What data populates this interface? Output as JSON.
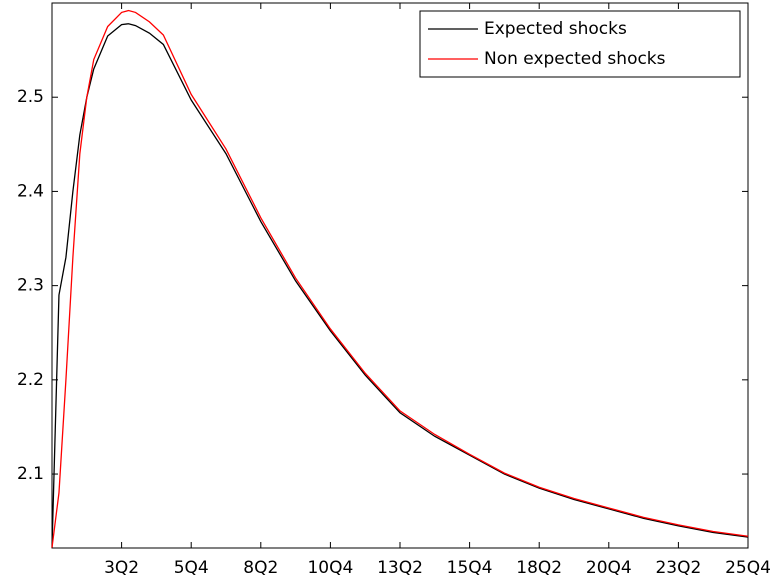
{
  "chart_data": {
    "type": "line",
    "x": [
      0,
      1,
      2,
      3,
      4,
      5,
      6,
      8,
      10,
      11,
      12,
      14,
      16,
      20,
      25,
      30,
      35,
      40,
      45,
      50,
      55,
      60,
      65,
      70,
      75,
      80,
      85,
      90,
      95,
      100
    ],
    "series": [
      {
        "name": "Expected shocks",
        "color": "#000000",
        "values": [
          2.022,
          2.29,
          2.33,
          2.4,
          2.46,
          2.5,
          2.53,
          2.565,
          2.577,
          2.578,
          2.576,
          2.568,
          2.556,
          2.497,
          2.44,
          2.368,
          2.305,
          2.252,
          2.205,
          2.165,
          2.14,
          2.12,
          2.1,
          2.085,
          2.073,
          2.063,
          2.053,
          2.045,
          2.038,
          2.033
        ]
      },
      {
        "name": "Non expected shocks",
        "color": "#ff0000",
        "values": [
          2.022,
          2.08,
          2.2,
          2.33,
          2.44,
          2.5,
          2.54,
          2.575,
          2.59,
          2.592,
          2.59,
          2.58,
          2.566,
          2.503,
          2.445,
          2.372,
          2.308,
          2.254,
          2.207,
          2.167,
          2.142,
          2.121,
          2.101,
          2.086,
          2.074,
          2.064,
          2.054,
          2.046,
          2.039,
          2.034
        ]
      }
    ],
    "xlim": [
      0,
      100
    ],
    "xticks": [
      {
        "value": 10,
        "label": "3Q2"
      },
      {
        "value": 20,
        "label": "5Q4"
      },
      {
        "value": 30,
        "label": "8Q2"
      },
      {
        "value": 40,
        "label": "10Q4"
      },
      {
        "value": 50,
        "label": "13Q2"
      },
      {
        "value": 60,
        "label": "15Q4"
      },
      {
        "value": 70,
        "label": "18Q2"
      },
      {
        "value": 80,
        "label": "20Q4"
      },
      {
        "value": 90,
        "label": "23Q2"
      },
      {
        "value": 100,
        "label": "25Q4"
      }
    ],
    "ylim": [
      2.0215,
      2.6
    ],
    "yticks": [
      2.1,
      2.2,
      2.3,
      2.4,
      2.5
    ],
    "legend": "upper right"
  }
}
